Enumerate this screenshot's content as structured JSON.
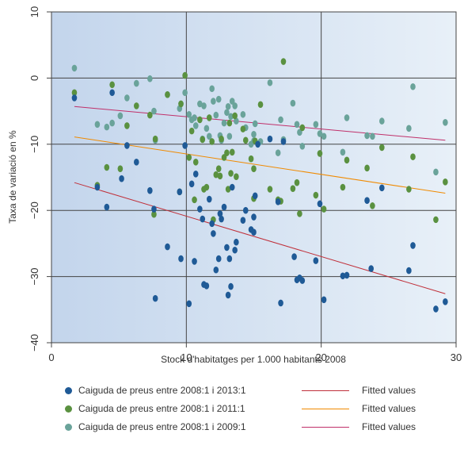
{
  "chart_data": {
    "type": "scatter",
    "xlabel": "Stock d'habitatges per 1.000 habitants 2008",
    "ylabel": "Taxa de variació en %",
    "xlim": [
      0,
      30
    ],
    "ylim": [
      -40,
      10
    ],
    "xticks": [
      "0",
      "10",
      "20",
      "30"
    ],
    "yticks": [
      "10",
      "0",
      "−10",
      "−20",
      "−30",
      "−40"
    ],
    "grid": true,
    "legend_position": "bottom",
    "series": [
      {
        "name": "Caiguda de preus entre 2008:1 i 2013:1",
        "color": "#1f5a96",
        "points": [
          [
            1.7,
            -3
          ],
          [
            3.4,
            -16.5
          ],
          [
            4.1,
            -19.5
          ],
          [
            4.5,
            -2.2
          ],
          [
            5.2,
            -15.2
          ],
          [
            5.6,
            -10.2
          ],
          [
            6.3,
            -12.7
          ],
          [
            7.3,
            -17
          ],
          [
            7.6,
            -19.8
          ],
          [
            7.7,
            -33.3
          ],
          [
            8.6,
            -25.5
          ],
          [
            9.5,
            -17.2
          ],
          [
            9.6,
            -27.3
          ],
          [
            9.9,
            -10.2
          ],
          [
            10.2,
            -34.1
          ],
          [
            10.4,
            -16
          ],
          [
            10.6,
            -27.7
          ],
          [
            10.7,
            -14.5
          ],
          [
            11,
            -19.8
          ],
          [
            11.2,
            -21.3
          ],
          [
            11.3,
            -31.2
          ],
          [
            11.5,
            -31.4
          ],
          [
            11.7,
            -18.3
          ],
          [
            11.9,
            -22
          ],
          [
            12,
            -23.5
          ],
          [
            12.2,
            -29
          ],
          [
            12.4,
            -27.3
          ],
          [
            12.5,
            -20.5
          ],
          [
            12.6,
            -21.3
          ],
          [
            12.8,
            -19.5
          ],
          [
            13,
            -25.6
          ],
          [
            13.1,
            -32.8
          ],
          [
            13.2,
            -27.3
          ],
          [
            13.3,
            -31.5
          ],
          [
            13.4,
            -16.5
          ],
          [
            13.6,
            -26
          ],
          [
            13.7,
            -24.8
          ],
          [
            14.2,
            -21.5
          ],
          [
            14.4,
            -20
          ],
          [
            14.8,
            -22.9
          ],
          [
            15,
            -21
          ],
          [
            15,
            -23.3
          ],
          [
            15.1,
            -17.8
          ],
          [
            15.3,
            -10
          ],
          [
            16.2,
            -9.2
          ],
          [
            16.8,
            -18.7
          ],
          [
            17,
            -34
          ],
          [
            17.2,
            -9.6
          ],
          [
            18,
            -27
          ],
          [
            18.2,
            -30.5
          ],
          [
            18.4,
            -30.2
          ],
          [
            18.6,
            -30.6
          ],
          [
            19.6,
            -27.6
          ],
          [
            19.9,
            -19
          ],
          [
            20.2,
            -33.5
          ],
          [
            21.6,
            -29.9
          ],
          [
            21.9,
            -29.8
          ],
          [
            23.7,
            -28.8
          ],
          [
            23.4,
            -18.5
          ],
          [
            24.5,
            -16.6
          ],
          [
            26.5,
            -29.1
          ],
          [
            26.8,
            -25.3
          ],
          [
            28.5,
            -34.9
          ],
          [
            29.2,
            -33.8
          ]
        ]
      },
      {
        "name": "Caiguda de preus entre 2008:1 i 2011:1",
        "color": "#5a9140",
        "points": [
          [
            1.7,
            -2.2
          ],
          [
            3.4,
            -16.2
          ],
          [
            4.1,
            -13.5
          ],
          [
            4.5,
            -1
          ],
          [
            5.1,
            -13.7
          ],
          [
            5.6,
            -7.2
          ],
          [
            6.3,
            -4.2
          ],
          [
            7.3,
            -5.6
          ],
          [
            7.6,
            -20.6
          ],
          [
            7.7,
            -9.2
          ],
          [
            8.6,
            -2.5
          ],
          [
            9.5,
            -17.2
          ],
          [
            9.6,
            -3.9
          ],
          [
            9.9,
            0.4
          ],
          [
            10.2,
            -12
          ],
          [
            10.4,
            -8
          ],
          [
            10.6,
            -18.4
          ],
          [
            10.7,
            -12.7
          ],
          [
            11,
            -6.3
          ],
          [
            11.2,
            -9.3
          ],
          [
            11.3,
            -16.8
          ],
          [
            11.5,
            -16.5
          ],
          [
            11.7,
            -6
          ],
          [
            11.9,
            -9.6
          ],
          [
            12,
            -21.4
          ],
          [
            12.2,
            -14.6
          ],
          [
            12.4,
            -13.7
          ],
          [
            12.5,
            -14.8
          ],
          [
            12.6,
            -9.2
          ],
          [
            12.8,
            -12
          ],
          [
            13,
            -11.3
          ],
          [
            13.1,
            -16.8
          ],
          [
            13.2,
            -6.8
          ],
          [
            13.3,
            -14.4
          ],
          [
            13.4,
            -11.2
          ],
          [
            13.6,
            -5.7
          ],
          [
            13.7,
            -14.9
          ],
          [
            14.2,
            -7.7
          ],
          [
            14.4,
            -9.4
          ],
          [
            14.8,
            -12.2
          ],
          [
            15,
            -18.2
          ],
          [
            15,
            -13.7
          ],
          [
            15.1,
            -9.5
          ],
          [
            15.5,
            -4
          ],
          [
            16.2,
            -16.8
          ],
          [
            16.8,
            -18.4
          ],
          [
            17,
            -18.6
          ],
          [
            17.2,
            2.5
          ],
          [
            17.9,
            -16.7
          ],
          [
            18.2,
            -15.8
          ],
          [
            18.4,
            -20.5
          ],
          [
            18.6,
            -7.5
          ],
          [
            19.6,
            -17.7
          ],
          [
            19.9,
            -11.4
          ],
          [
            20.2,
            -19.8
          ],
          [
            21.6,
            -16.5
          ],
          [
            21.9,
            -12.4
          ],
          [
            23.4,
            -13.6
          ],
          [
            23.8,
            -19.3
          ],
          [
            24.5,
            -10.5
          ],
          [
            26.5,
            -16.8
          ],
          [
            26.8,
            -11.9
          ],
          [
            28.5,
            -21.4
          ],
          [
            29.2,
            -15.7
          ]
        ]
      },
      {
        "name": "Caiguda de preus entre 2008:1 i 2009:1",
        "color": "#6aa39a",
        "points": [
          [
            1.7,
            1.5
          ],
          [
            3.4,
            -7
          ],
          [
            4.1,
            -7.4
          ],
          [
            4.5,
            -6.8
          ],
          [
            5.1,
            -5.7
          ],
          [
            5.6,
            -3
          ],
          [
            6.3,
            -0.8
          ],
          [
            7.3,
            -0.1
          ],
          [
            7.6,
            -5
          ],
          [
            7.7,
            -9.4
          ],
          [
            8.6,
            -2.5
          ],
          [
            9.5,
            -4.6
          ],
          [
            9.6,
            -3.9
          ],
          [
            9.9,
            -2.2
          ],
          [
            10.2,
            -5.5
          ],
          [
            10.4,
            -6.3
          ],
          [
            10.6,
            -6
          ],
          [
            10.7,
            -7.2
          ],
          [
            11,
            -3.9
          ],
          [
            11.2,
            -9.2
          ],
          [
            11.3,
            -4.2
          ],
          [
            11.5,
            -7.6
          ],
          [
            11.7,
            -8.8
          ],
          [
            11.9,
            -1.6
          ],
          [
            12,
            -3.5
          ],
          [
            12.2,
            -5.6
          ],
          [
            12.4,
            -3.2
          ],
          [
            12.5,
            -8.7
          ],
          [
            12.6,
            -9.4
          ],
          [
            12.8,
            -6.8
          ],
          [
            13,
            -5.2
          ],
          [
            13.1,
            -4.3
          ],
          [
            13.2,
            -8.8
          ],
          [
            13.3,
            -5.8
          ],
          [
            13.4,
            -3.5
          ],
          [
            13.6,
            -4.2
          ],
          [
            13.7,
            -6.5
          ],
          [
            14.2,
            -5.5
          ],
          [
            14.4,
            -7.5
          ],
          [
            14.8,
            -10
          ],
          [
            15,
            -8.5
          ],
          [
            15,
            -9.5
          ],
          [
            15.1,
            -6.9
          ],
          [
            15.5,
            -9.6
          ],
          [
            16.2,
            -0.7
          ],
          [
            16.8,
            -11.3
          ],
          [
            17,
            -6.3
          ],
          [
            17.2,
            -9.3
          ],
          [
            17.9,
            -3.8
          ],
          [
            18.2,
            -7
          ],
          [
            18.4,
            -8.2
          ],
          [
            18.6,
            -10.3
          ],
          [
            19.6,
            -7
          ],
          [
            19.9,
            -8.4
          ],
          [
            20.2,
            -8.8
          ],
          [
            21.6,
            -11.2
          ],
          [
            21.9,
            -6
          ],
          [
            23.4,
            -8.7
          ],
          [
            23.8,
            -8.8
          ],
          [
            24.5,
            -6.5
          ],
          [
            26.5,
            -7.6
          ],
          [
            26.8,
            -1.3
          ],
          [
            28.5,
            -14.2
          ],
          [
            29.2,
            -6.7
          ]
        ]
      }
    ],
    "fitted_lines": [
      {
        "name": "Fitted values",
        "color": "#c0303a",
        "x": [
          1.7,
          29.2
        ],
        "y": [
          -15.8,
          -32.6
        ]
      },
      {
        "name": "Fitted values",
        "color": "#f08a00",
        "x": [
          1.7,
          29.2
        ],
        "y": [
          -8.9,
          -17.4
        ]
      },
      {
        "name": "Fitted values",
        "color": "#c0306a",
        "x": [
          1.7,
          29.2
        ],
        "y": [
          -4.3,
          -9.4
        ]
      }
    ]
  },
  "legend": {
    "items": [
      {
        "label": "Caiguda de preus entre 2008:1 i 2013:1",
        "kind": "dot",
        "color": "#1f5a96"
      },
      {
        "label": "Fitted values",
        "kind": "line",
        "color": "#c0303a"
      },
      {
        "label": "Caiguda de preus entre 2008:1 i 2011:1",
        "kind": "dot",
        "color": "#5a9140"
      },
      {
        "label": "Fitted values",
        "kind": "line",
        "color": "#f08a00"
      },
      {
        "label": "Caiguda de preus entre 2008:1 i 2009:1",
        "kind": "dot",
        "color": "#6aa39a"
      },
      {
        "label": "Fitted values",
        "kind": "line",
        "color": "#c0306a"
      }
    ]
  }
}
